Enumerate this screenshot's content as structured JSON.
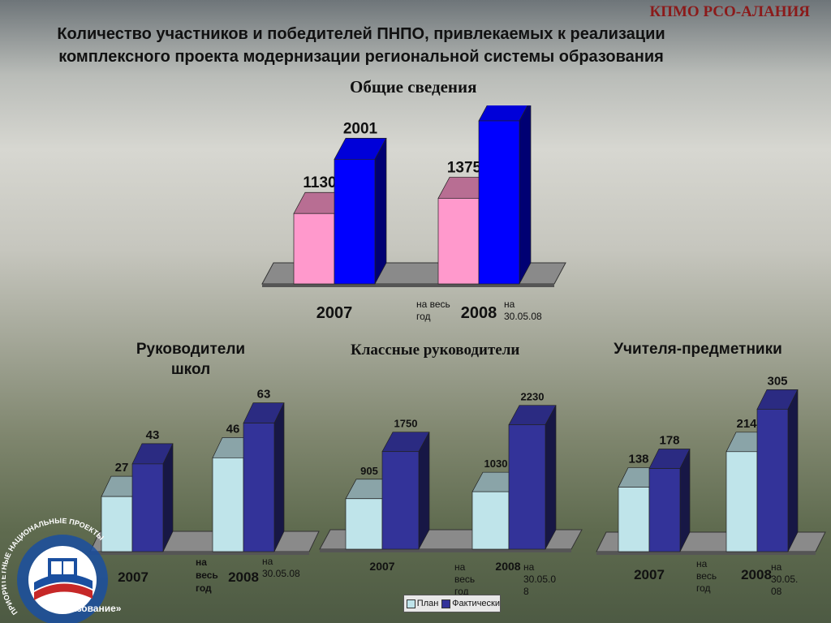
{
  "header": {
    "org": "КПМО РСО-АЛАНИЯ",
    "title_line1": "Количество участников и победителей ПНПО, привлекаемых к реализации",
    "title_line2": "комплексного проекта модернизации региональной системы образования"
  },
  "notes": {
    "main_plan": "на весь год",
    "main_fact": "на 30.05.08",
    "left_plan": "на весь год",
    "left_fact": "на 30.05.08",
    "mid_plan": "на весь год",
    "mid_fact": "на 30.05.0 8",
    "right_plan": "на весь год",
    "right_fact": "на 30.05. 08"
  },
  "legend": {
    "plan": "План",
    "fact": "Фактически"
  },
  "logo": {
    "text1": "ПРИОРИТЕТНЫЕ НАЦИОНАЛЬНЫЕ ПРОЕКТЫ",
    "text2": "«Образование»"
  },
  "colors": {
    "main_plan": "#ff99cc",
    "main_fact": "#0000ff",
    "sub_plan": "#bfe4ea",
    "sub_fact": "#333399",
    "floor": "#8a8a8a",
    "title_org": "#8b1a1a"
  },
  "chart_data": [
    {
      "id": "main",
      "type": "bar",
      "title": "Общие сведения",
      "categories": [
        "2007",
        "2008"
      ],
      "series": [
        {
          "values": [
            1130,
            1375
          ]
        },
        {
          "values": [
            2001,
            2618
          ]
        }
      ],
      "ylim": [
        0,
        2800
      ],
      "grid": false
    },
    {
      "id": "left",
      "type": "bar",
      "title": "Руководители школ",
      "categories": [
        "2007",
        "2008"
      ],
      "series": [
        {
          "name": "План",
          "values": [
            27,
            46
          ]
        },
        {
          "name": "Фактически",
          "values": [
            43,
            63
          ]
        }
      ],
      "ylim": [
        0,
        70
      ],
      "grid": false
    },
    {
      "id": "mid",
      "type": "bar",
      "title": "Классные руководители",
      "categories": [
        "2007",
        "2008"
      ],
      "series": [
        {
          "name": "План",
          "values": [
            905,
            1030
          ]
        },
        {
          "name": "Фактически",
          "values": [
            1750,
            2230
          ]
        }
      ],
      "ylim": [
        0,
        2400
      ],
      "grid": false,
      "legend": "bottom"
    },
    {
      "id": "right",
      "type": "bar",
      "title": "Учителя-предметники",
      "categories": [
        "2007",
        "2008"
      ],
      "series": [
        {
          "name": "План",
          "values": [
            138,
            214
          ]
        },
        {
          "name": "Фактически",
          "values": [
            178,
            305
          ]
        }
      ],
      "ylim": [
        0,
        330
      ],
      "grid": false
    }
  ]
}
